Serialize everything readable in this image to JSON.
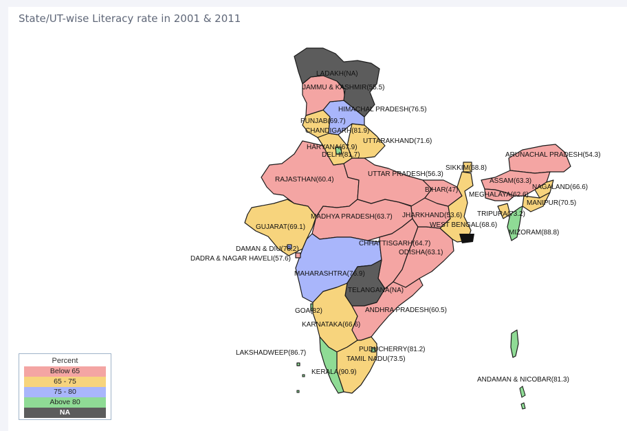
{
  "title": "State/UT-wise Literacy rate in 2001 & 2011",
  "colors": {
    "below65": "#f4a5a3",
    "c65_75": "#f7d47d",
    "c75_80": "#a9b6fb",
    "above80": "#8fdb95",
    "na": "#5c5c5c"
  },
  "legend": {
    "title": "Percent",
    "items": [
      {
        "label": "Below 65",
        "color": "#f4a5a3"
      },
      {
        "label": "65 - 75",
        "color": "#f7d47d"
      },
      {
        "label": "75 - 80",
        "color": "#a9b6fb"
      },
      {
        "label": "Above 80",
        "color": "#8fdb95"
      },
      {
        "label": "NA",
        "color": "#5c5c5c"
      }
    ]
  },
  "states": [
    {
      "label": "LADAKH(NA)",
      "category": "na"
    },
    {
      "label": "JAMMU & KASHMIR(55.5)",
      "category": "below65"
    },
    {
      "label": "HIMACHAL PRADESH(76.5)",
      "category": "c75_80"
    },
    {
      "label": "PUNJAB(69.7)",
      "category": "c65_75"
    },
    {
      "label": "CHANDIGARH(81.9)",
      "category": "above80"
    },
    {
      "label": "UTTARAKHAND(71.6)",
      "category": "c65_75"
    },
    {
      "label": "HARYANA(67.9)",
      "category": "c65_75"
    },
    {
      "label": "DELHI(81.7)",
      "category": "above80"
    },
    {
      "label": "RAJASTHAN(60.4)",
      "category": "below65"
    },
    {
      "label": "UTTAR PRADESH(56.3)",
      "category": "below65"
    },
    {
      "label": "SIKKIM(68.8)",
      "category": "c65_75"
    },
    {
      "label": "ARUNACHAL PRADESH(54.3)",
      "category": "below65"
    },
    {
      "label": "ASSAM(63.3)",
      "category": "below65"
    },
    {
      "label": "NAGALAND(66.6)",
      "category": "c65_75"
    },
    {
      "label": "BIHAR(47)",
      "category": "below65"
    },
    {
      "label": "MEGHALAYA(62.6)",
      "category": "below65"
    },
    {
      "label": "MANIPUR(70.5)",
      "category": "c65_75"
    },
    {
      "label": "GUJARAT(69.1)",
      "category": "c65_75"
    },
    {
      "label": "MADHYA PRADESH(63.7)",
      "category": "below65"
    },
    {
      "label": "JHARKHAND(53.6)",
      "category": "below65"
    },
    {
      "label": "TRIPURA(73.2)",
      "category": "c65_75"
    },
    {
      "label": "WEST BENGAL(68.6)",
      "category": "c65_75"
    },
    {
      "label": "MIZORAM(88.8)",
      "category": "above80"
    },
    {
      "label": "DAMAN & DIU(78.2)",
      "category": "c75_80"
    },
    {
      "label": "DADRA & NAGAR HAVELI(57.6)",
      "category": "below65"
    },
    {
      "label": "CHHATTISGARH(64.7)",
      "category": "below65"
    },
    {
      "label": "ODISHA(63.1)",
      "category": "below65"
    },
    {
      "label": "MAHARASHTRA(76.9)",
      "category": "c75_80"
    },
    {
      "label": "TELANGANA(NA)",
      "category": "na"
    },
    {
      "label": "GOA(82)",
      "category": "above80"
    },
    {
      "label": "ANDHRA PRADESH(60.5)",
      "category": "below65"
    },
    {
      "label": "KARNATAKA(66.6)",
      "category": "c65_75"
    },
    {
      "label": "LAKSHADWEEP(86.7)",
      "category": "above80"
    },
    {
      "label": "PUDUCHERRY(81.2)",
      "category": "above80"
    },
    {
      "label": "TAMIL NADU(73.5)",
      "category": "c65_75"
    },
    {
      "label": "KERALA(90.9)",
      "category": "above80"
    },
    {
      "label": "ANDAMAN & NICOBAR(81.3)",
      "category": "above80"
    }
  ]
}
